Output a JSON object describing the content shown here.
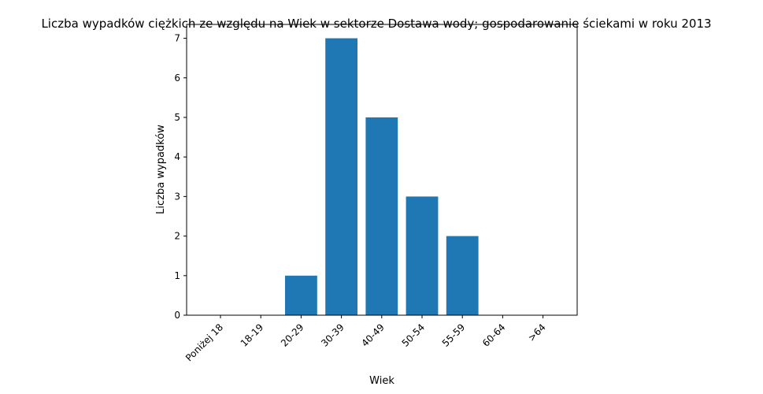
{
  "chart_data": {
    "type": "bar",
    "title": "Liczba wypadków ciężkich ze względu na Wiek w sektorze Dostawa wody; gospodarowanie ściekami w roku 2013",
    "xlabel": "Wiek",
    "ylabel": "Liczba wypadków",
    "categories": [
      "Poniżej 18",
      "18-19",
      "20-29",
      "30-39",
      "40-49",
      "50-54",
      "55-59",
      "60-64",
      ">64"
    ],
    "values": [
      0,
      0,
      1,
      7,
      5,
      3,
      2,
      0,
      0
    ],
    "ylim": [
      0,
      7.35
    ],
    "yticks": [
      0,
      1,
      2,
      3,
      4,
      5,
      6,
      7
    ],
    "bar_color": "#1f77b4",
    "grid": false,
    "legend": "none"
  }
}
